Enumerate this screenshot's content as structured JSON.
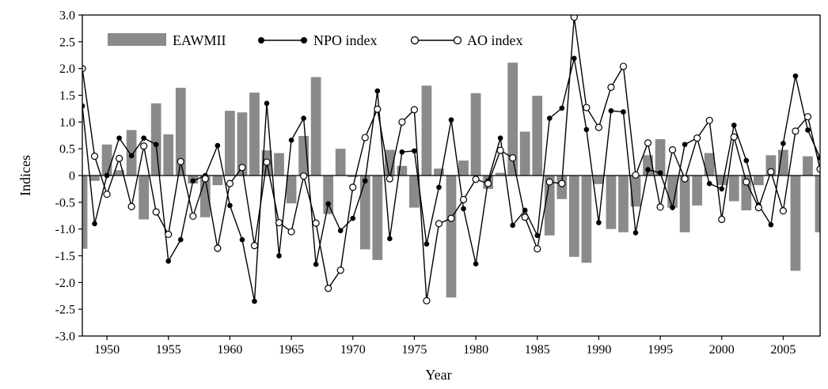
{
  "colors": {
    "bar": "#8a8a8a",
    "npo_line": "#000000",
    "ao_line": "#000000",
    "npo_marker": "#000000",
    "ao_marker_fill": "#ffffff"
  },
  "chart_data": {
    "type": "bar+line",
    "title": "",
    "xlabel": "Year",
    "ylabel": "Indices",
    "xlim": [
      1948,
      2008
    ],
    "ylim": [
      -3.0,
      3.0
    ],
    "x_ticks": [
      1950,
      1955,
      1960,
      1965,
      1970,
      1975,
      1980,
      1985,
      1990,
      1995,
      2000,
      2005
    ],
    "y_ticks": [
      "3.0",
      "2.5",
      "2.0",
      "1.5",
      "1.0",
      "0.5",
      "0",
      "-0.5",
      "-1.0",
      "-1.5",
      "-2.0",
      "-2.5",
      "-3.0"
    ],
    "legend_position": "top-left",
    "years": [
      1948,
      1949,
      1950,
      1951,
      1952,
      1953,
      1954,
      1955,
      1956,
      1957,
      1958,
      1959,
      1960,
      1961,
      1962,
      1963,
      1964,
      1965,
      1966,
      1967,
      1968,
      1969,
      1970,
      1971,
      1972,
      1973,
      1974,
      1975,
      1976,
      1977,
      1978,
      1979,
      1980,
      1981,
      1982,
      1983,
      1984,
      1985,
      1986,
      1987,
      1988,
      1989,
      1990,
      1991,
      1992,
      1993,
      1994,
      1995,
      1996,
      1997,
      1998,
      1999,
      2000,
      2001,
      2002,
      2003,
      2004,
      2005,
      2006,
      2007,
      2008
    ],
    "series": [
      {
        "name": "EAWMII",
        "type": "bar",
        "values": [
          -1.37,
          -0.1,
          0.58,
          0.1,
          0.85,
          -0.82,
          1.35,
          0.77,
          1.64,
          -0.15,
          -0.78,
          -0.18,
          1.21,
          1.18,
          1.55,
          0.47,
          0.42,
          -0.52,
          0.74,
          1.84,
          -0.72,
          0.5,
          -0.03,
          -1.38,
          -1.58,
          0.48,
          0.18,
          -0.6,
          1.68,
          0.13,
          -2.28,
          0.28,
          1.54,
          -0.25,
          0.05,
          2.11,
          0.82,
          1.49,
          -1.12,
          -0.44,
          -1.52,
          -1.63,
          -0.16,
          -1.0,
          -1.06,
          -0.58,
          0.38,
          0.68,
          -0.6,
          -1.06,
          -0.56,
          0.42,
          -0.18,
          -0.48,
          -0.65,
          -0.18,
          0.38,
          0.48,
          -1.78,
          0.36,
          -1.06
        ]
      },
      {
        "name": "NPO index",
        "type": "line",
        "values": [
          1.3,
          -0.9,
          0.0,
          0.7,
          0.37,
          0.7,
          0.58,
          -1.6,
          -1.2,
          -0.1,
          0.0,
          0.56,
          -0.56,
          -1.2,
          -2.35,
          1.35,
          -1.5,
          0.66,
          1.07,
          -1.66,
          -0.53,
          -1.03,
          -0.8,
          -0.1,
          1.58,
          -1.18,
          0.44,
          0.46,
          -1.28,
          -0.22,
          1.04,
          -0.62,
          -1.65,
          -0.1,
          0.7,
          -0.93,
          -0.65,
          -1.12,
          1.07,
          1.26,
          2.19,
          0.86,
          -0.88,
          1.21,
          1.19,
          -1.07,
          0.11,
          0.05,
          -0.6,
          0.58,
          0.7,
          -0.15,
          -0.25,
          0.94,
          0.28,
          -0.55,
          -0.92,
          0.6,
          1.86,
          0.85,
          0.33
        ]
      },
      {
        "name": "AO index",
        "type": "line",
        "values": [
          2.0,
          0.36,
          -0.35,
          0.32,
          -0.58,
          0.55,
          -0.68,
          -1.1,
          0.26,
          -0.76,
          -0.06,
          -1.36,
          -0.15,
          0.15,
          -1.31,
          0.25,
          -0.88,
          -1.05,
          -0.01,
          -0.89,
          -2.11,
          -1.77,
          -0.22,
          0.71,
          1.24,
          -0.06,
          1.0,
          1.23,
          -2.34,
          -0.9,
          -0.8,
          -0.45,
          -0.07,
          -0.15,
          0.47,
          0.33,
          -0.78,
          -1.37,
          -0.12,
          -0.15,
          2.96,
          1.27,
          0.9,
          1.65,
          2.04,
          0.01,
          0.61,
          -0.59,
          0.48,
          -0.06,
          0.7,
          1.03,
          -0.82,
          0.72,
          -0.12,
          -0.6,
          0.07,
          -0.66,
          0.83,
          1.1,
          0.12
        ]
      }
    ]
  }
}
